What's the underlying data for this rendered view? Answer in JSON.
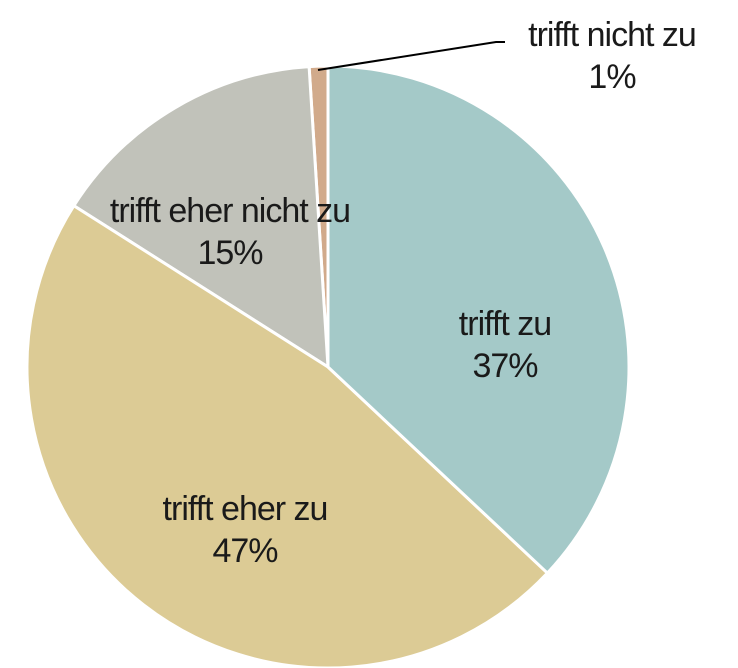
{
  "chart_data": {
    "type": "pie",
    "categories": [
      "trifft zu",
      "trifft eher zu",
      "trifft eher nicht zu",
      "trifft nicht zu"
    ],
    "values": [
      37,
      47,
      15,
      1
    ],
    "value_labels": [
      "37%",
      "47%",
      "15%",
      "1%"
    ],
    "colors": [
      "#a4c9c8",
      "#dccb95",
      "#c1c2ba",
      "#d1aa8b"
    ]
  }
}
